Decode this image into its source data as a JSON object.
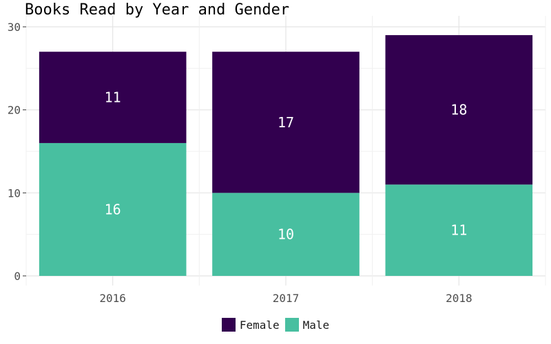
{
  "chart_data": {
    "type": "bar",
    "stacked": true,
    "title": "Books Read by Year and Gender",
    "xlabel": "",
    "ylabel": "",
    "categories": [
      "2016",
      "2017",
      "2018"
    ],
    "series": [
      {
        "name": "Male",
        "values": [
          16,
          10,
          11
        ],
        "color": "#48bfa0"
      },
      {
        "name": "Female",
        "values": [
          11,
          17,
          18
        ],
        "color": "#32004f"
      }
    ],
    "ylim": [
      0,
      30
    ],
    "yticks": [
      0,
      10,
      20,
      30
    ],
    "grid": true,
    "legend_position": "bottom",
    "legend_order": [
      "Female",
      "Male"
    ]
  }
}
